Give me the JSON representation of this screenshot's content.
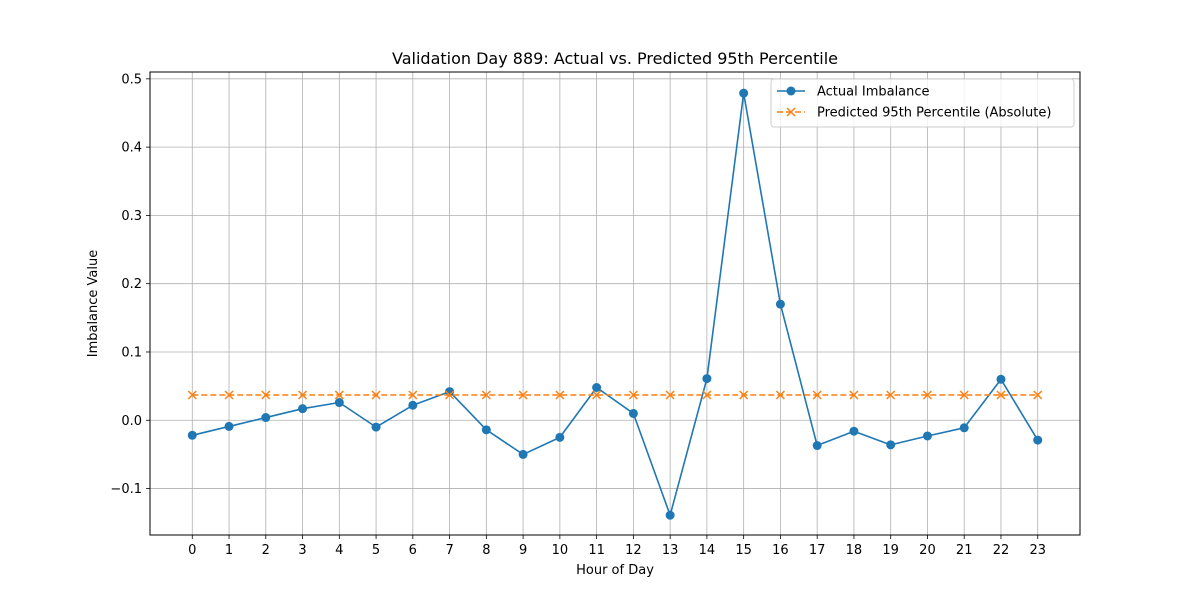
{
  "chart_data": {
    "type": "line",
    "title": "Validation Day 889: Actual vs. Predicted 95th Percentile",
    "xlabel": "Hour of Day",
    "ylabel": "Imbalance Value",
    "x": [
      0,
      1,
      2,
      3,
      4,
      5,
      6,
      7,
      8,
      9,
      10,
      11,
      12,
      13,
      14,
      15,
      16,
      17,
      18,
      19,
      20,
      21,
      22,
      23
    ],
    "xlim": [
      -1.15,
      24.15
    ],
    "ylim": [
      -0.168,
      0.51
    ],
    "yticks": [
      -0.1,
      0.0,
      0.1,
      0.2,
      0.3,
      0.4,
      0.5
    ],
    "ytick_labels": [
      "−0.1",
      "0.0",
      "0.1",
      "0.2",
      "0.3",
      "0.4",
      "0.5"
    ],
    "grid": true,
    "legend_position": "top-right",
    "series": [
      {
        "name": "Actual Imbalance",
        "color": "#1f77b4",
        "marker": "circle",
        "line_style": "solid",
        "values": [
          -0.022,
          -0.009,
          0.004,
          0.017,
          0.026,
          -0.01,
          0.022,
          0.042,
          -0.014,
          -0.05,
          -0.025,
          0.048,
          0.01,
          -0.139,
          0.061,
          0.479,
          0.17,
          -0.037,
          -0.016,
          -0.036,
          -0.023,
          -0.011,
          0.06,
          -0.029
        ]
      },
      {
        "name": "Predicted 95th Percentile (Absolute)",
        "color": "#ff7f0e",
        "marker": "x",
        "line_style": "dashed",
        "values": [
          0.037,
          0.037,
          0.037,
          0.037,
          0.037,
          0.037,
          0.037,
          0.037,
          0.037,
          0.037,
          0.037,
          0.037,
          0.037,
          0.037,
          0.037,
          0.037,
          0.037,
          0.037,
          0.037,
          0.037,
          0.037,
          0.037,
          0.037,
          0.037
        ]
      }
    ]
  }
}
